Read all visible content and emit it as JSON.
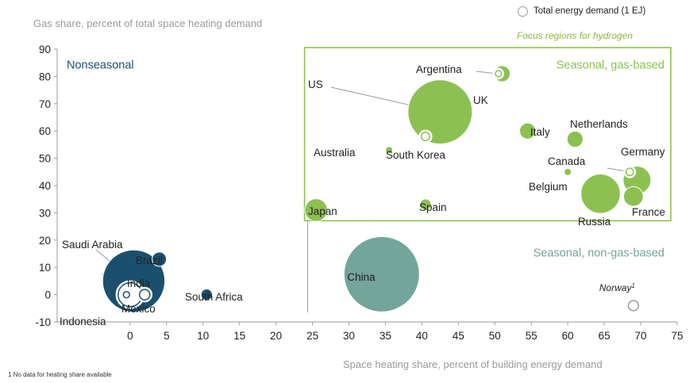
{
  "colors": {
    "nonseasonal": "#1b4f6e",
    "seasonal_gas": "#8cc152",
    "seasonal_nongas": "#73a59b",
    "focus_text": "#8cba3f",
    "box_border": "#8cc152",
    "axis_text": "#9a9a9a"
  },
  "legend": {
    "bubble_label": "Total energy demand (1 EJ)",
    "focus_label": "Focus regions for hydrogen"
  },
  "footnote": "1 No data for heating share available",
  "chart_data": {
    "type": "scatter",
    "subtype": "bubble",
    "xlabel": "Space heating share, percent of building energy demand",
    "ylabel": "Gas share, percent of total space heating demand",
    "xlim": [
      -10,
      75
    ],
    "ylim": [
      -10,
      90
    ],
    "xticks": [
      0,
      5,
      10,
      15,
      20,
      25,
      30,
      35,
      40,
      45,
      50,
      55,
      60,
      65,
      70,
      75
    ],
    "yticks": [
      -10,
      0,
      10,
      20,
      30,
      40,
      50,
      60,
      70,
      80,
      90
    ],
    "grid": false,
    "regions": [
      {
        "label": "Nonseasonal",
        "color_key": "nonseasonal"
      },
      {
        "label": "Seasonal, gas-based",
        "color_key": "seasonal_gas",
        "x_range": [
          25,
          75
        ],
        "y_range": [
          30,
          90
        ]
      },
      {
        "label": "Seasonal, non-gas-based",
        "color_key": "seasonal_nongas"
      }
    ],
    "points": [
      {
        "name": "Saudi Arabia",
        "x": 0.5,
        "y": 5,
        "size_ej": 1.5,
        "group": "nonseasonal",
        "hollow": false
      },
      {
        "name": "Brazil",
        "x": 4,
        "y": 13,
        "size_ej": 0.08,
        "group": "nonseasonal",
        "hollow": false
      },
      {
        "name": "India",
        "x": 0,
        "y": 0,
        "size_ej": 0.3,
        "group": "nonseasonal",
        "hollow": true
      },
      {
        "name": "Mexico",
        "x": 2,
        "y": 0,
        "size_ej": 0.08,
        "group": "nonseasonal",
        "hollow": true
      },
      {
        "name": "Indonesia",
        "x": -0.5,
        "y": 0,
        "size_ej": 0.04,
        "group": "nonseasonal",
        "hollow": true
      },
      {
        "name": "South Africa",
        "x": 10.5,
        "y": 0,
        "size_ej": 0.05,
        "group": "nonseasonal",
        "hollow": false
      },
      {
        "name": "China",
        "x": 34.5,
        "y": 7.5,
        "size_ej": 2.2,
        "group": "seasonal_nongas",
        "hollow": false
      },
      {
        "name": "Norway",
        "note": "1",
        "x": 69,
        "y": -4,
        "size_ej": 0.04,
        "group": "seasonal_nongas",
        "hollow": true
      },
      {
        "name": "US",
        "x": 42.5,
        "y": 67,
        "size_ej": 1.6,
        "group": "seasonal_gas",
        "hollow": false
      },
      {
        "name": "Argentina",
        "x": 50.5,
        "y": 81,
        "size_ej": 0.04,
        "group": "seasonal_gas",
        "hollow": true
      },
      {
        "name": "UK",
        "x": 51,
        "y": 81,
        "size_ej": 0.1,
        "group": "seasonal_gas",
        "hollow": false
      },
      {
        "name": "South Korea",
        "x": 40.5,
        "y": 58,
        "size_ej": 0.06,
        "group": "seasonal_gas",
        "hollow": true
      },
      {
        "name": "Australia",
        "x": 35.5,
        "y": 53,
        "size_ej": 0.02,
        "group": "seasonal_gas",
        "hollow": false
      },
      {
        "name": "Japan",
        "x": 25.5,
        "y": 31,
        "size_ej": 0.2,
        "group": "seasonal_gas",
        "hollow": false
      },
      {
        "name": "Spain",
        "x": 40.5,
        "y": 33,
        "size_ej": 0.05,
        "group": "seasonal_gas",
        "hollow": false
      },
      {
        "name": "Italy",
        "x": 54.5,
        "y": 60,
        "size_ej": 0.1,
        "group": "seasonal_gas",
        "hollow": false
      },
      {
        "name": "Netherlands",
        "x": 61,
        "y": 57,
        "size_ej": 0.1,
        "group": "seasonal_gas",
        "hollow": false
      },
      {
        "name": "Canada",
        "x": 68.5,
        "y": 45,
        "size_ej": 0.05,
        "group": "seasonal_gas",
        "hollow": true
      },
      {
        "name": "Belgium",
        "x": 60,
        "y": 45,
        "size_ej": 0.02,
        "group": "seasonal_gas",
        "hollow": false
      },
      {
        "name": "Germany",
        "x": 69.5,
        "y": 42,
        "size_ej": 0.3,
        "group": "seasonal_gas",
        "hollow": false
      },
      {
        "name": "Russia",
        "x": 64.5,
        "y": 37,
        "size_ej": 0.6,
        "group": "seasonal_gas",
        "hollow": false
      },
      {
        "name": "France",
        "x": 69,
        "y": 36,
        "size_ej": 0.15,
        "group": "seasonal_gas",
        "hollow": false
      }
    ]
  }
}
